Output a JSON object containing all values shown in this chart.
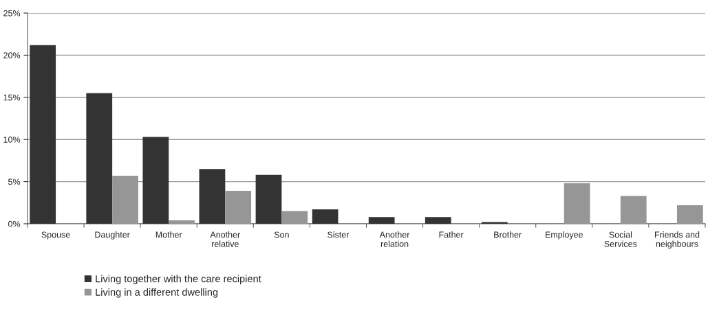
{
  "chart_data": {
    "type": "bar",
    "categories": [
      "Spouse",
      "Daughter",
      "Mother",
      "Another\nrelative",
      "Son",
      "Sister",
      "Another\nrelation",
      "Father",
      "Brother",
      "Employee",
      "Social\nServices",
      "Friends and\nneighbours"
    ],
    "series": [
      {
        "name": "Living together with the care recipient",
        "color": "#333333",
        "values": [
          21.2,
          15.5,
          10.3,
          6.5,
          5.8,
          1.7,
          0.8,
          0.8,
          0.2,
          null,
          null,
          null
        ]
      },
      {
        "name": "Living in a different dwelling",
        "color": "#969696",
        "values": [
          null,
          5.7,
          0.4,
          3.9,
          1.5,
          null,
          null,
          null,
          null,
          4.8,
          3.3,
          2.2
        ]
      }
    ],
    "ylim": [
      0,
      25
    ],
    "yticks": [
      {
        "value": 0,
        "label": "0%"
      },
      {
        "value": 5,
        "label": "5%"
      },
      {
        "value": 10,
        "label": "10%"
      },
      {
        "value": 15,
        "label": "15%"
      },
      {
        "value": 20,
        "label": "20%"
      },
      {
        "value": 25,
        "label": "25%"
      }
    ],
    "grid": "y",
    "legend": "bottom"
  }
}
